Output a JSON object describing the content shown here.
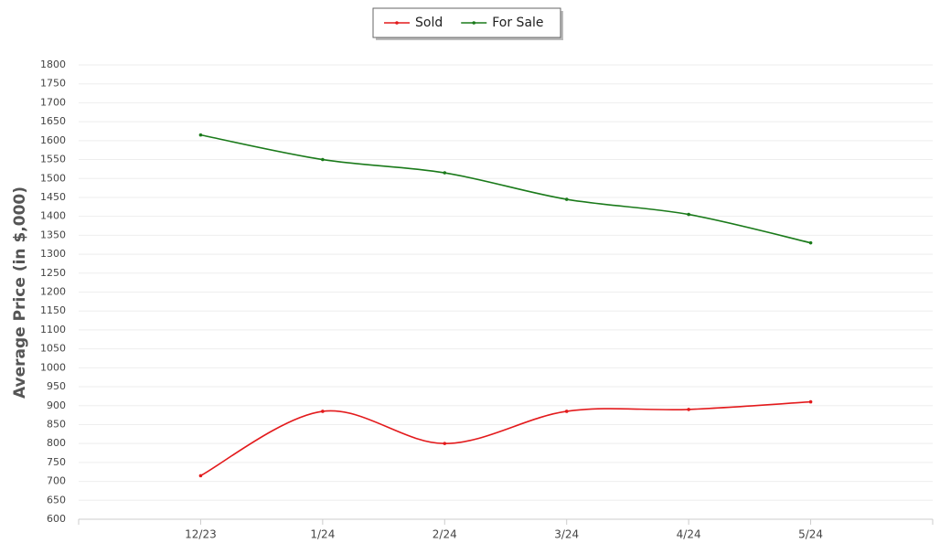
{
  "chart_data": {
    "type": "line",
    "y_label": "Average Price (in $,000)",
    "categories": [
      "12/23",
      "1/24",
      "2/24",
      "3/24",
      "4/24",
      "5/24"
    ],
    "series": [
      {
        "name": "Sold",
        "color": "#e31a1c",
        "values": [
          715,
          885,
          800,
          885,
          890,
          910
        ]
      },
      {
        "name": "For Sale",
        "color": "#1a7a1a",
        "values": [
          1615,
          1550,
          1515,
          1445,
          1405,
          1330
        ]
      }
    ],
    "ylim": [
      600,
      1800
    ],
    "yticks": [
      600,
      650,
      700,
      750,
      800,
      850,
      900,
      950,
      1000,
      1050,
      1100,
      1150,
      1200,
      1250,
      1300,
      1350,
      1400,
      1450,
      1500,
      1550,
      1600,
      1650,
      1700,
      1750,
      1800
    ],
    "grid": true
  }
}
